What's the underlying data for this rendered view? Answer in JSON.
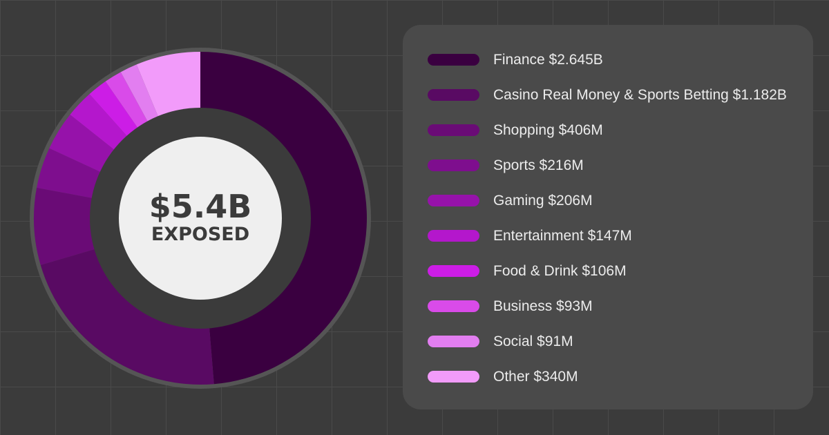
{
  "chart_data": {
    "type": "pie",
    "center_value": "$5.4B",
    "center_label": "EXPOSED",
    "legend_position": "right",
    "series": [
      {
        "name": "Finance",
        "label": "Finance $2.645B",
        "value": 2645,
        "color": "#3a0040"
      },
      {
        "name": "Casino Real Money & Sports Betting",
        "label": "Casino Real Money & Sports Betting $1.182B",
        "value": 1182,
        "color": "#590a63"
      },
      {
        "name": "Shopping",
        "label": "Shopping $406M",
        "value": 406,
        "color": "#6a0b76"
      },
      {
        "name": "Sports",
        "label": "Sports $216M",
        "value": 216,
        "color": "#7e0e8e"
      },
      {
        "name": "Gaming",
        "label": "Gaming $206M",
        "value": 206,
        "color": "#9612aa"
      },
      {
        "name": "Entertainment",
        "label": "Entertainment $147M",
        "value": 147,
        "color": "#b417cc"
      },
      {
        "name": "Food & Drink",
        "label": "Food & Drink $106M",
        "value": 106,
        "color": "#cc1de6"
      },
      {
        "name": "Business",
        "label": "Business $93M",
        "value": 93,
        "color": "#d94be9"
      },
      {
        "name": "Social",
        "label": "Social $91M",
        "value": 91,
        "color": "#e27ef0"
      },
      {
        "name": "Other",
        "label": "Other $340M",
        "value": 340,
        "color": "#f29bfa"
      }
    ]
  }
}
